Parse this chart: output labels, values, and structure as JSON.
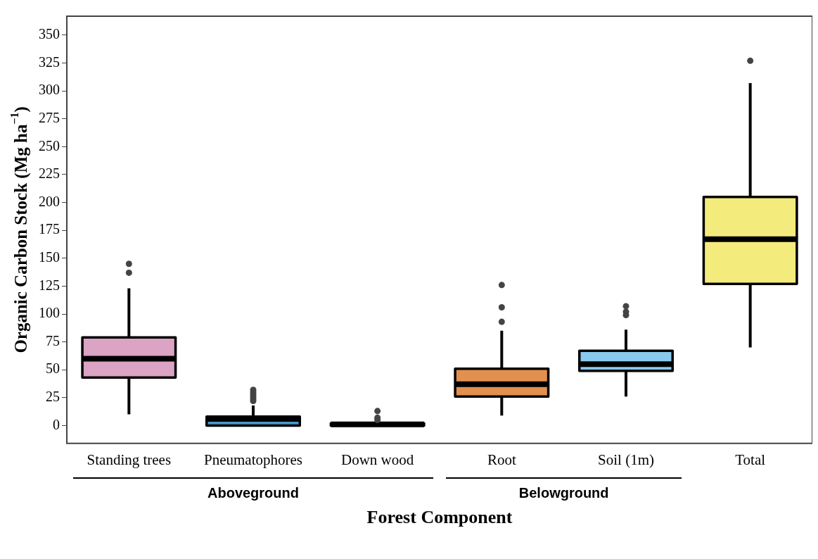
{
  "chart_data": {
    "type": "box",
    "xlabel": "Forest Component",
    "ylabel": "Organic Carbon Stock (Mg ha$^{−1}$)",
    "categories": [
      "Standing trees",
      "Pneumatophores",
      "Down wood",
      "Root",
      "Soil (1m)",
      "Total"
    ],
    "colors": [
      "#dba3c4",
      "#4a97cc",
      "#000000",
      "#e2904f",
      "#89c9ee",
      "#f4eb7d"
    ],
    "boxes": [
      {
        "low": 10,
        "q1": 43,
        "median": 60,
        "q3": 79,
        "high": 123,
        "outliers": [
          137,
          145
        ]
      },
      {
        "low": 0,
        "q1": 0,
        "median": 6,
        "q3": 8,
        "high": 18,
        "outliers": [
          22,
          24,
          26,
          28,
          30,
          32
        ]
      },
      {
        "low": 0,
        "q1": 0,
        "median": 1,
        "q3": 2,
        "high": 3,
        "outliers": [
          5,
          7,
          13
        ]
      },
      {
        "low": 9,
        "q1": 26,
        "median": 37,
        "q3": 51,
        "high": 85,
        "outliers": [
          93,
          106,
          126
        ]
      },
      {
        "low": 26,
        "q1": 49,
        "median": 55,
        "q3": 67,
        "high": 86,
        "outliers": [
          99,
          102,
          107
        ]
      },
      {
        "low": 70,
        "q1": 127,
        "median": 167,
        "q3": 205,
        "high": 307,
        "outliers": [
          327
        ]
      }
    ],
    "ylim": [
      -16,
      367
    ],
    "yticks": [
      0,
      25,
      50,
      75,
      100,
      125,
      150,
      175,
      200,
      225,
      250,
      275,
      300,
      325,
      350
    ],
    "annotations": [
      "Aboveground",
      "Belowground"
    ],
    "grid": false
  }
}
